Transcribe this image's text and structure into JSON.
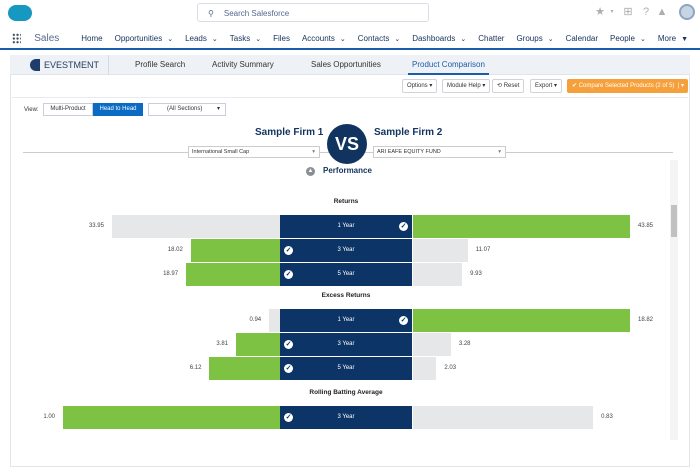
{
  "header": {
    "search_placeholder": "Search Salesforce"
  },
  "nav": {
    "app_name": "Sales",
    "items": [
      {
        "label": "Home",
        "menu": false
      },
      {
        "label": "Opportunities",
        "menu": true
      },
      {
        "label": "Leads",
        "menu": true
      },
      {
        "label": "Tasks",
        "menu": true
      },
      {
        "label": "Files",
        "menu": false
      },
      {
        "label": "Accounts",
        "menu": true
      },
      {
        "label": "Contacts",
        "menu": true
      },
      {
        "label": "Dashboards",
        "menu": true
      },
      {
        "label": "Chatter",
        "menu": false
      },
      {
        "label": "Groups",
        "menu": true
      },
      {
        "label": "Calendar",
        "menu": false
      },
      {
        "label": "People",
        "menu": true
      },
      {
        "label": "More",
        "menu": true
      }
    ]
  },
  "app": {
    "brand": "EVESTMENT",
    "tabs": [
      "Profile Search",
      "Activity Summary",
      "Sales Opportunities",
      "Product Comparison"
    ],
    "active_tab": "Product Comparison"
  },
  "toolbar": {
    "options": "Options ▾",
    "module_help": "Module Help ▾",
    "reset": "Reset",
    "export": "Export ▾",
    "compare": "Compare Selected Products (2 of 5)"
  },
  "view": {
    "label": "View:",
    "multi": "Multi-Product",
    "head": "Head to Head",
    "sections": "(All Sections)"
  },
  "firms": {
    "left": "Sample Firm 1",
    "right": "Sample Firm 2",
    "vs": "VS",
    "left_product": "International Small Cap",
    "right_product": "ARI EAFE EQUITY FUND"
  },
  "section_title": "Performance",
  "colors": {
    "win": "#7dc242",
    "lose": "#e6e7e8",
    "center": "#0d3466"
  },
  "chart_data": {
    "type": "bar",
    "groups": [
      {
        "title": "Returns",
        "rows": [
          {
            "label": "1 Year",
            "left": 33.95,
            "right": 43.85
          },
          {
            "label": "3 Year",
            "left": 18.02,
            "right": 11.07
          },
          {
            "label": "5 Year",
            "left": 18.97,
            "right": 9.93
          }
        ]
      },
      {
        "title": "Excess Returns",
        "rows": [
          {
            "label": "1 Year",
            "left": 0.94,
            "right": 18.82
          },
          {
            "label": "3 Year",
            "left": 3.81,
            "right": 3.28
          },
          {
            "label": "5 Year",
            "left": 6.12,
            "right": 2.03
          }
        ]
      },
      {
        "title": "Rolling Batting Average",
        "rows": [
          {
            "label": "3 Year",
            "left": 1.0,
            "right": 0.83
          }
        ]
      }
    ]
  }
}
